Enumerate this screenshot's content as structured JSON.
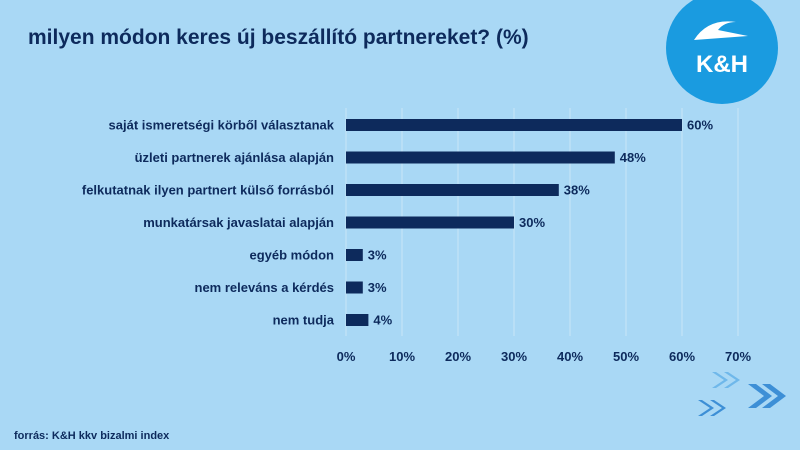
{
  "title": "milyen módon keres új beszállító partnereket? (%)",
  "source": "forrás: K&H kkv bizalmi index",
  "logo": {
    "text": "K&H",
    "icon": "kh-logo-icon",
    "bg_color": "#1a9be0"
  },
  "colors": {
    "background": "#a9d8f5",
    "bar": "#0d2a5c",
    "grid": "#c9e6f8",
    "chevron_light": "#6fb8ea",
    "chevron_dark": "#3d8fd6"
  },
  "chart_data": {
    "type": "bar",
    "orientation": "horizontal",
    "categories": [
      "saját ismeretségi körből választanak",
      "üzleti partnerek ajánlása alapján",
      "felkutatnak ilyen partnert külső forrásból",
      "munkatársak javaslatai alapján",
      "egyéb módon",
      "nem releváns a kérdés",
      "nem tudja"
    ],
    "values": [
      60,
      48,
      38,
      30,
      3,
      3,
      4
    ],
    "value_labels": [
      "60%",
      "48%",
      "38%",
      "30%",
      "3%",
      "3%",
      "4%"
    ],
    "xlim": [
      0,
      70
    ],
    "xticks": [
      0,
      10,
      20,
      30,
      40,
      50,
      60,
      70
    ],
    "xtick_labels": [
      "0%",
      "10%",
      "20%",
      "30%",
      "40%",
      "50%",
      "60%",
      "70%"
    ],
    "grid": true,
    "legend": "none"
  }
}
